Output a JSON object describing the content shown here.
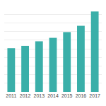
{
  "chart_data": {
    "type": "bar",
    "categories": [
      "2011",
      "2012",
      "2013",
      "2014",
      "2015",
      "2016",
      "2017"
    ],
    "values": [
      7.6,
      8.0,
      8.8,
      9.4,
      10.4,
      11.5,
      14.0
    ],
    "color": "#3aafa9",
    "ylim": [
      0,
      15
    ],
    "yticks": [
      0,
      1.5,
      3,
      4.5,
      6,
      7.5,
      9,
      10.5,
      12,
      13.5,
      15
    ],
    "grid": true,
    "tick_labels": "x"
  }
}
